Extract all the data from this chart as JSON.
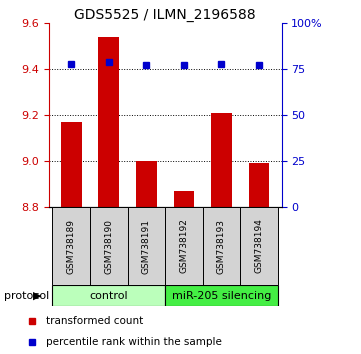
{
  "title": "GDS5525 / ILMN_2196588",
  "samples": [
    "GSM738189",
    "GSM738190",
    "GSM738191",
    "GSM738192",
    "GSM738193",
    "GSM738194"
  ],
  "red_values": [
    9.17,
    9.54,
    9.0,
    8.87,
    9.21,
    8.99
  ],
  "blue_values": [
    78,
    79,
    77,
    77,
    78,
    77
  ],
  "ylim_left": [
    8.8,
    9.6
  ],
  "ylim_right": [
    0,
    100
  ],
  "yticks_left": [
    8.8,
    9.0,
    9.2,
    9.4,
    9.6
  ],
  "yticks_right": [
    0,
    25,
    50,
    75,
    100
  ],
  "ytick_labels_right": [
    "0",
    "25",
    "50",
    "75",
    "100%"
  ],
  "bar_color": "#cc0000",
  "square_color": "#0000cc",
  "bar_bottom": 8.8,
  "group_bounds": [
    [
      0,
      3,
      "control",
      "#bbffbb"
    ],
    [
      3,
      6,
      "miR-205 silencing",
      "#44ee44"
    ]
  ],
  "protocol_label": "protocol",
  "legend_red": "transformed count",
  "legend_blue": "percentile rank within the sample",
  "title_fontsize": 10,
  "tick_fontsize": 8,
  "sample_fontsize": 6.5,
  "protocol_fontsize": 8,
  "legend_fontsize": 7.5
}
